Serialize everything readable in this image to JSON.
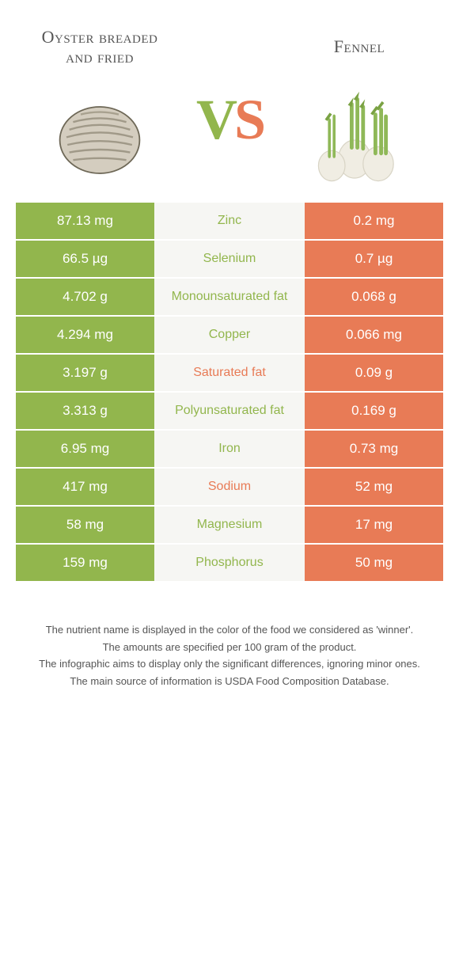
{
  "colors": {
    "left": "#92b64d",
    "right": "#e87b56",
    "mid_bg": "#f6f6f3"
  },
  "food_left": {
    "title": "Oyster breaded and fried"
  },
  "food_right": {
    "title": "Fennel"
  },
  "vs": {
    "v": "V",
    "s": "S"
  },
  "rows": [
    {
      "left": "87.13 mg",
      "label": "Zinc",
      "right": "0.2 mg",
      "winner": "left"
    },
    {
      "left": "66.5 µg",
      "label": "Selenium",
      "right": "0.7 µg",
      "winner": "left"
    },
    {
      "left": "4.702 g",
      "label": "Monounsaturated fat",
      "right": "0.068 g",
      "winner": "left"
    },
    {
      "left": "4.294 mg",
      "label": "Copper",
      "right": "0.066 mg",
      "winner": "left"
    },
    {
      "left": "3.197 g",
      "label": "Saturated fat",
      "right": "0.09 g",
      "winner": "right"
    },
    {
      "left": "3.313 g",
      "label": "Polyunsaturated fat",
      "right": "0.169 g",
      "winner": "left"
    },
    {
      "left": "6.95 mg",
      "label": "Iron",
      "right": "0.73 mg",
      "winner": "left"
    },
    {
      "left": "417 mg",
      "label": "Sodium",
      "right": "52 mg",
      "winner": "right"
    },
    {
      "left": "58 mg",
      "label": "Magnesium",
      "right": "17 mg",
      "winner": "left"
    },
    {
      "left": "159 mg",
      "label": "Phosphorus",
      "right": "50 mg",
      "winner": "left"
    }
  ],
  "footnotes": [
    "The nutrient name is displayed in the color of the food we considered as 'winner'.",
    "The amounts are specified per 100 gram of the product.",
    "The infographic aims to display only the significant differences, ignoring minor ones.",
    "The main source of information is USDA Food Composition Database."
  ]
}
